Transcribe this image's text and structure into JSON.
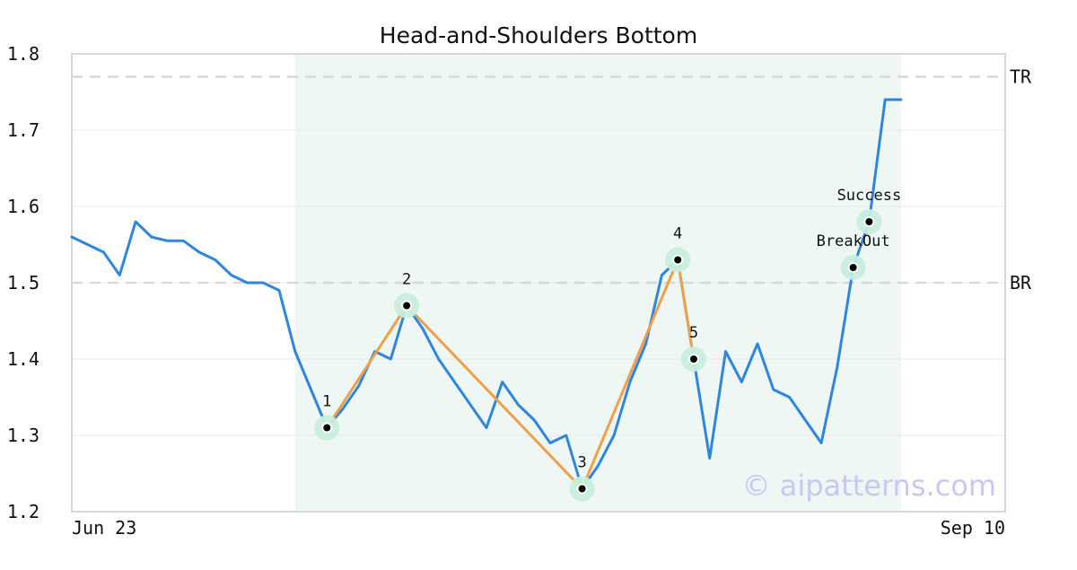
{
  "chart_data": {
    "type": "line",
    "title": "Head-and-Shoulders Bottom",
    "xlabel": "",
    "ylabel": "",
    "ylim": [
      1.2,
      1.8
    ],
    "yticks": [
      1.2,
      1.3,
      1.4,
      1.5,
      1.6,
      1.7,
      1.8
    ],
    "ytick_labels": [
      "1.2",
      "1.3",
      "1.4",
      "1.5",
      "1.6",
      "1.7",
      "1.8"
    ],
    "x_range": [
      0,
      56
    ],
    "x_tick_labels": [
      {
        "label": "Jun 23",
        "x": 0
      },
      {
        "label": "Sep 10",
        "x": 56
      }
    ],
    "grid": true,
    "pattern_region": {
      "x_start": 14,
      "x_end": 52,
      "color": "#eef7f3"
    },
    "reference_lines": [
      {
        "label": "TR",
        "y": 1.77,
        "color": "#d9d9d9"
      },
      {
        "label": "BR",
        "y": 1.5,
        "color": "#d9d9d9"
      }
    ],
    "series": [
      {
        "color": "#2e86de",
        "x": [
          0,
          1,
          2,
          3,
          4,
          5,
          6,
          7,
          8,
          9,
          10,
          11,
          12,
          13,
          14,
          15,
          16,
          17,
          18,
          19,
          20,
          21,
          22,
          23,
          24,
          25,
          26,
          27,
          28,
          29,
          30,
          31,
          32,
          33,
          34,
          35,
          36,
          37,
          38,
          39,
          40,
          41,
          42,
          43,
          44,
          45,
          46,
          47,
          48,
          49,
          50,
          51,
          52
        ],
        "values": [
          1.56,
          1.55,
          1.54,
          1.51,
          1.58,
          1.56,
          1.555,
          1.555,
          1.54,
          1.53,
          1.51,
          1.5,
          1.5,
          1.49,
          1.41,
          1.36,
          1.31,
          1.335,
          1.365,
          1.41,
          1.4,
          1.47,
          1.44,
          1.4,
          1.37,
          1.34,
          1.31,
          1.37,
          1.34,
          1.32,
          1.29,
          1.3,
          1.23,
          1.26,
          1.3,
          1.37,
          1.42,
          1.51,
          1.53,
          1.4,
          1.27,
          1.41,
          1.37,
          1.42,
          1.36,
          1.35,
          1.32,
          1.29,
          1.39,
          1.52,
          1.58,
          1.74,
          1.74
        ]
      }
    ],
    "pattern_line": {
      "color": "#f0a04b",
      "x": [
        16,
        21,
        32,
        38,
        39
      ],
      "values": [
        1.31,
        1.47,
        1.23,
        1.53,
        1.4
      ]
    },
    "points": [
      {
        "label": "1",
        "x": 16,
        "y": 1.31,
        "label_pos": "above"
      },
      {
        "label": "2",
        "x": 21,
        "y": 1.47,
        "label_pos": "above"
      },
      {
        "label": "3",
        "x": 32,
        "y": 1.23,
        "label_pos": "above"
      },
      {
        "label": "4",
        "x": 38,
        "y": 1.53,
        "label_pos": "above"
      },
      {
        "label": "5",
        "x": 39,
        "y": 1.4,
        "label_pos": "above"
      },
      {
        "label": "BreakOut",
        "x": 49,
        "y": 1.52,
        "label_pos": "above"
      },
      {
        "label": "Success",
        "x": 50,
        "y": 1.58,
        "label_pos": "above"
      }
    ],
    "watermark": "© aipatterns.com"
  }
}
